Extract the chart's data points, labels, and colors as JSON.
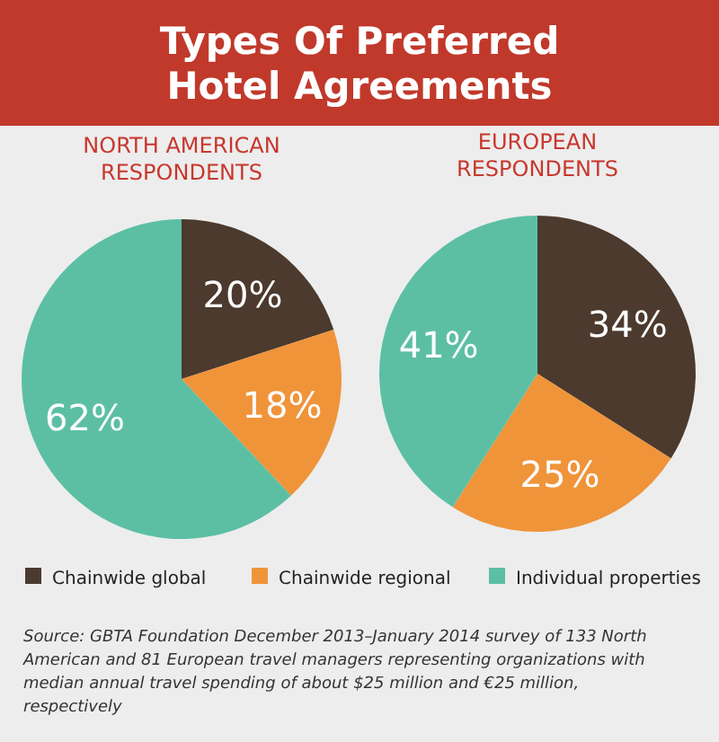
{
  "chart_data": [
    {
      "type": "pie",
      "title": "NORTH AMERICAN RESPONDENTS",
      "categories": [
        "Chainwide global",
        "Chainwide regional",
        "Individual properties"
      ],
      "values": [
        20,
        18,
        62
      ],
      "value_labels": [
        "20%",
        "18%",
        "62%"
      ],
      "colors": [
        "#4b3a2d",
        "#f0943a",
        "#5cbfa4"
      ],
      "legend": "bottom",
      "annotations": [
        "Types Of Preferred Hotel Agreements"
      ]
    },
    {
      "type": "pie",
      "title": "EUROPEAN RESPONDENTS",
      "categories": [
        null,
        null,
        null
      ],
      "values": [
        34,
        25,
        41
      ],
      "value_labels": [
        "34%",
        "25%",
        "41%"
      ],
      "colors": [
        "#4b3a2d",
        "#f0943a",
        "#5cbfa4"
      ],
      "annotations": [
        "Source: GBTA Foundation December 2013–January 2014 survey of 133 North American and 81 European travel managers representing organizations with median annual travel spending of about $25 million and €25 million, respectively"
      ]
    }
  ]
}
